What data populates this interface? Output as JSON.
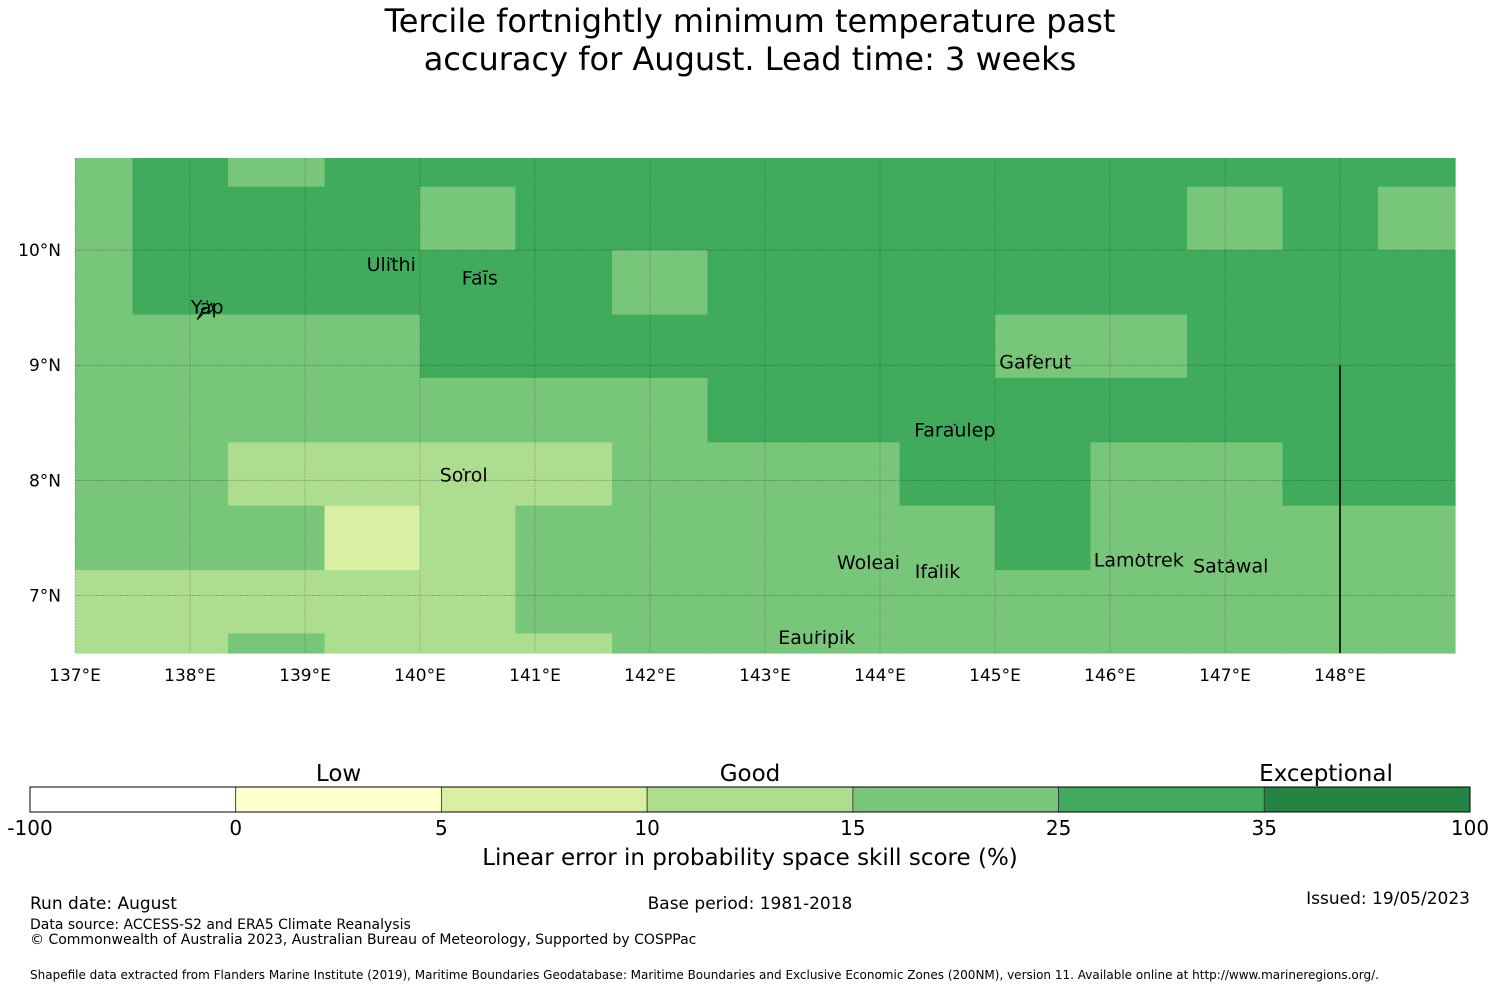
{
  "title_line1": "Tercile fortnightly minimum temperature past",
  "title_line2": "accuracy for August. Lead time: 3 weeks",
  "map": {
    "lon_range": [
      137.0,
      149.0
    ],
    "lat_range": [
      6.5,
      10.8
    ],
    "lon_ticks": [
      {
        "value": 137,
        "label": "137°E"
      },
      {
        "value": 138,
        "label": "138°E"
      },
      {
        "value": 139,
        "label": "139°E"
      },
      {
        "value": 140,
        "label": "140°E"
      },
      {
        "value": 141,
        "label": "141°E"
      },
      {
        "value": 142,
        "label": "142°E"
      },
      {
        "value": 143,
        "label": "143°E"
      },
      {
        "value": 144,
        "label": "144°E"
      },
      {
        "value": 145,
        "label": "145°E"
      },
      {
        "value": 146,
        "label": "146°E"
      },
      {
        "value": 147,
        "label": "147°E"
      },
      {
        "value": 148,
        "label": "148°E"
      }
    ],
    "lat_ticks": [
      {
        "value": 10,
        "label": "10°N"
      },
      {
        "value": 9,
        "label": "9°N"
      },
      {
        "value": 8,
        "label": "8°N"
      },
      {
        "value": 7,
        "label": "7°N"
      }
    ],
    "colors": [
      "#ffffff",
      "#ffffcc",
      "#d9f0a3",
      "#addd8e",
      "#78c679",
      "#41ab5d",
      "#238443"
    ],
    "grid_cols": [
      137.0,
      137.5,
      138.33,
      139.17,
      140.0,
      140.83,
      141.67,
      142.5,
      143.33,
      144.17,
      145.0,
      145.83,
      146.67,
      147.5,
      148.33,
      149.0
    ],
    "grid_rows": [
      10.8,
      10.55,
      10.0,
      9.44,
      8.89,
      8.33,
      7.78,
      7.22,
      6.67,
      6.5
    ],
    "cells": [
      [
        4,
        5,
        4,
        5,
        5,
        5,
        5,
        5,
        5,
        5,
        5,
        5,
        5,
        5,
        5
      ],
      [
        4,
        5,
        5,
        5,
        4,
        5,
        5,
        5,
        5,
        5,
        5,
        5,
        4,
        5,
        4
      ],
      [
        4,
        5,
        5,
        5,
        5,
        5,
        4,
        5,
        5,
        5,
        5,
        5,
        5,
        5,
        5
      ],
      [
        4,
        4,
        4,
        4,
        5,
        5,
        5,
        5,
        5,
        5,
        4,
        4,
        5,
        5,
        5
      ],
      [
        4,
        4,
        4,
        4,
        4,
        4,
        4,
        5,
        5,
        5,
        5,
        5,
        5,
        5,
        5
      ],
      [
        4,
        4,
        3,
        3,
        3,
        3,
        4,
        4,
        4,
        5,
        5,
        4,
        4,
        5,
        5
      ],
      [
        4,
        4,
        4,
        2,
        3,
        4,
        4,
        4,
        4,
        4,
        5,
        4,
        4,
        4,
        4
      ],
      [
        3,
        3,
        3,
        3,
        3,
        4,
        4,
        4,
        4,
        4,
        4,
        4,
        4,
        4,
        4
      ],
      [
        3,
        3,
        4,
        3,
        3,
        3,
        4,
        4,
        4,
        4,
        4,
        4,
        4,
        4,
        4
      ]
    ],
    "boundary_line": {
      "lon": 148.0,
      "lat_from": 6.5,
      "lat_to": 9.0
    },
    "places": [
      {
        "name": "Yap",
        "lon": 138.15,
        "lat": 9.45
      },
      {
        "name": "Ulithi",
        "lon": 139.75,
        "lat": 9.82
      },
      {
        "name": "Faīs",
        "lon": 140.52,
        "lat": 9.7
      },
      {
        "name": "Gaferut",
        "lon": 145.35,
        "lat": 8.97
      },
      {
        "name": "Faraulep",
        "lon": 144.65,
        "lat": 8.38
      },
      {
        "name": "Sorol",
        "lon": 140.38,
        "lat": 7.99
      },
      {
        "name": "Woleai",
        "lon": 143.9,
        "lat": 7.23
      },
      {
        "name": "Ifalik",
        "lon": 144.5,
        "lat": 7.15
      },
      {
        "name": "Lamotrek",
        "lon": 146.25,
        "lat": 7.25
      },
      {
        "name": "Satawal",
        "lon": 147.05,
        "lat": 7.2
      },
      {
        "name": "Eauripik",
        "lon": 143.45,
        "lat": 6.58
      }
    ]
  },
  "colorbar": {
    "categories": [
      {
        "label": "Low",
        "position": 1.5
      },
      {
        "label": "Good",
        "position": 3.5
      },
      {
        "label": "Exceptional",
        "position": 6.3
      }
    ],
    "ticks": [
      "-100",
      "0",
      "5",
      "10",
      "15",
      "25",
      "35",
      "100"
    ],
    "title": "Linear error in probability space skill score (%)"
  },
  "footer": {
    "run_date": "Run date: August",
    "base_period": "Base period: 1981-2018",
    "issued": "Issued: 19/05/2023",
    "data_source": "Data source: ACCESS-S2 and ERA5 Climate Reanalysis",
    "copyright": "© Commonwealth of Australia 2023, Australian Bureau of Meteorology, Supported by COSPPac",
    "shapefile": "Shapefile data extracted from Flanders Marine Institute (2019), Maritime Boundaries Geodatabase: Maritime Boundaries and Exclusive Economic Zones (200NM), version 11. Available online at http://www.marineregions.org/."
  }
}
